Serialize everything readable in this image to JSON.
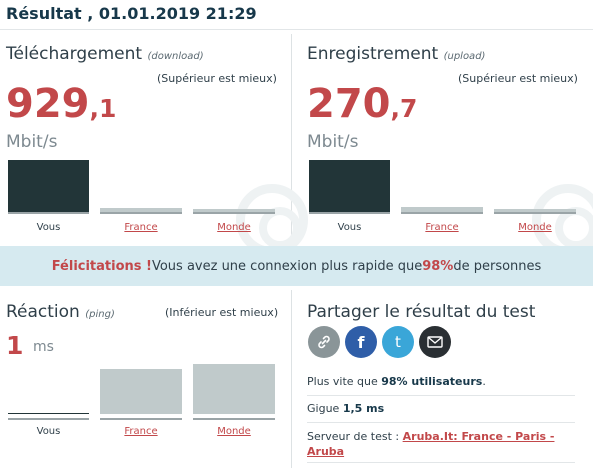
{
  "title": "Résultat , 01.01.2019 21:29",
  "download": {
    "label": "Téléchargement",
    "sublabel": "(download)",
    "hint": "(Supérieur est mieux)",
    "value_int": "929",
    "value_dec": ",1",
    "unit": "Mbit/s",
    "bars": [
      {
        "label": "Vous",
        "level": 1.0
      },
      {
        "label": "France",
        "level": 0.08
      },
      {
        "label": "Monde",
        "level": 0.05
      }
    ]
  },
  "upload": {
    "label": "Enregistrement",
    "sublabel": "(upload)",
    "hint": "(Supérieur est mieux)",
    "value_int": "270",
    "value_dec": ",7",
    "unit": "Mbit/s",
    "bars": [
      {
        "label": "Vous",
        "level": 1.0
      },
      {
        "label": "France",
        "level": 0.1
      },
      {
        "label": "Monde",
        "level": 0.06
      }
    ]
  },
  "banner": {
    "congrats": "Félicitations !",
    "text_before": " Vous avez une connexion plus rapide que ",
    "percent": "98%",
    "text_after": " de personnes"
  },
  "ping": {
    "label": "Réaction",
    "sublabel": "(ping)",
    "hint": "(Inférieur est mieux)",
    "value": "1",
    "unit": "ms",
    "bars": [
      {
        "label": "Vous",
        "level": 0.02
      },
      {
        "label": "France",
        "level": 0.9
      },
      {
        "label": "Monde",
        "level": 1.0
      }
    ]
  },
  "share": {
    "title": "Partager le résultat du test",
    "buttons": [
      {
        "name": "link",
        "color": "#8a9598"
      },
      {
        "name": "facebook",
        "glyph": "f",
        "color": "#2f5ea8"
      },
      {
        "name": "twitter",
        "glyph": "t",
        "color": "#3aa6d8"
      },
      {
        "name": "email",
        "color": "#2a2f33"
      }
    ],
    "faster_prefix": "Plus vite que ",
    "faster_value": "98% utilisateurs",
    "faster_suffix": ".",
    "jitter_label": "Gigue ",
    "jitter_value": "1,5 ms",
    "server_label": "Serveur de test : ",
    "server_line1": "Aruba.It: France - Paris -",
    "server_line2": "Aruba"
  }
}
